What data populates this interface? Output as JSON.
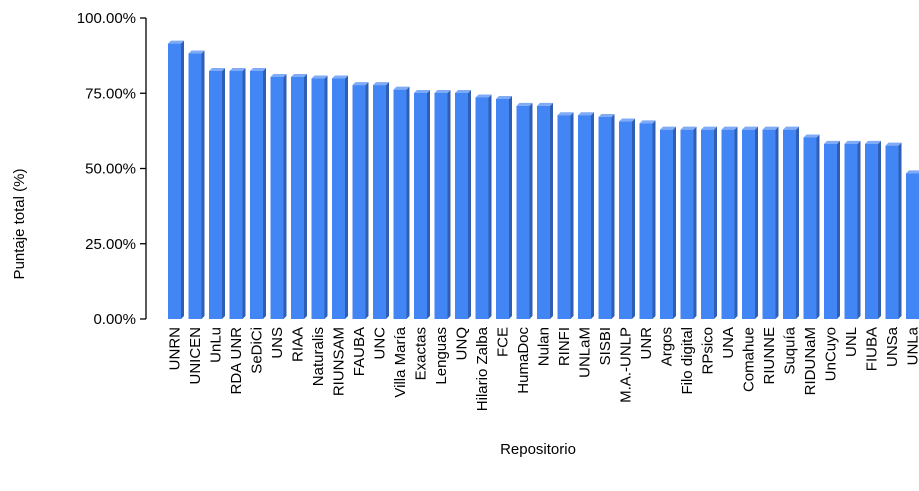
{
  "chart_data": {
    "type": "bar",
    "title": "",
    "xlabel": "Repositorio",
    "ylabel": "Puntaje total (%)",
    "ylim": [
      0,
      100
    ],
    "yticks": [
      "0.00%",
      "25.00%",
      "50.00%",
      "75.00%",
      "100.00%"
    ],
    "grid": false,
    "bar_color": "#4285f4",
    "bar_side_color": "#2f5fb3",
    "bar_top_color": "#7fabf7",
    "categories": [
      "UNRN",
      "UNICEN",
      "UnLu",
      "RDA UNR",
      "SeDiCi",
      "UNS",
      "RIAA",
      "Naturalis",
      "RIUNSAM",
      "FAUBA",
      "UNC",
      "Villa María",
      "Exactas",
      "Lenguas",
      "UNQ",
      "Hilario Zalba",
      "FCE",
      "HumaDoc",
      "Nulan",
      "RINFI",
      "UNLaM",
      "SISBI",
      "M.A.-UNLP",
      "UNR",
      "Argos",
      "Filo digital",
      "RPsico",
      "UNA",
      "Comahue",
      "RIUNNE",
      "Suquía",
      "RIDUNaM",
      "UnCuyo",
      "UNL",
      "FIUBA",
      "UNSa",
      "UNLa"
    ],
    "values": [
      91.5,
      88.2,
      82.4,
      82.4,
      82.4,
      80.4,
      80.4,
      79.9,
      79.9,
      77.7,
      77.7,
      76.2,
      75.1,
      75.1,
      75.1,
      73.6,
      73.1,
      70.8,
      70.8,
      67.7,
      67.7,
      67.1,
      65.6,
      65.0,
      62.9,
      62.9,
      62.9,
      62.9,
      62.9,
      62.9,
      62.9,
      60.3,
      58.2,
      58.2,
      58.2,
      57.6,
      48.4
    ]
  }
}
